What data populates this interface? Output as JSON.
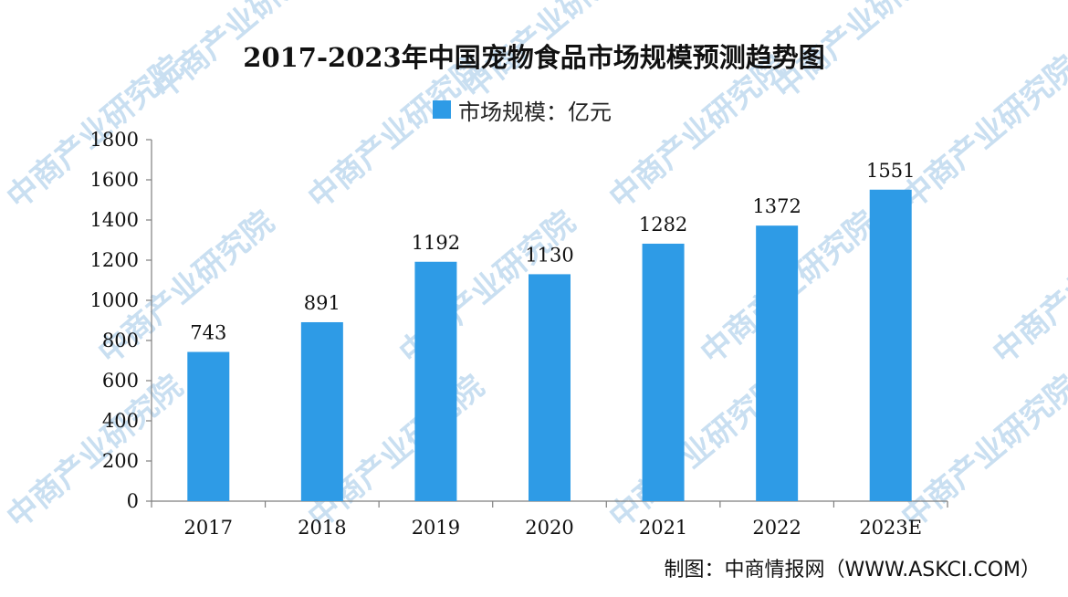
{
  "title": "2017-2023年中国宠物食品市场规模预测趋势图",
  "source": "制图：中商情报网（WWW.ASKCI.COM）",
  "watermark": "中商产业研究院",
  "colors": {
    "bar": "#2e9be6",
    "axis": "#7f7f7f"
  },
  "chart_data": {
    "type": "bar",
    "title": "2017-2023年中国宠物食品市场规模预测趋势图",
    "categories": [
      "2017",
      "2018",
      "2019",
      "2020",
      "2021",
      "2022",
      "2023E"
    ],
    "series": [
      {
        "name": "市场规模：亿元",
        "values": [
          743,
          891,
          1192,
          1130,
          1282,
          1372,
          1551
        ]
      }
    ],
    "xlabel": "",
    "ylabel": "",
    "ylim": [
      0,
      1800
    ],
    "yticks": [
      0,
      200,
      400,
      600,
      800,
      1000,
      1200,
      1400,
      1600,
      1800
    ],
    "grid": false,
    "legend": "top-center",
    "data_labels": true
  }
}
